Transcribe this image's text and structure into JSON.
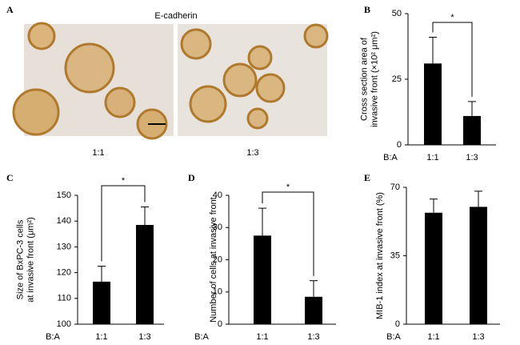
{
  "figure": {
    "panel_a": {
      "label": "A",
      "title": "E-cadherin",
      "captions": [
        "1:1",
        "1:3"
      ]
    }
  },
  "chart_data": [
    {
      "type": "bar",
      "panel_label": "B",
      "ylabel": [
        "Cross section area of",
        "invasive front (×10² μm²)"
      ],
      "x_prefix": "B:A",
      "categories": [
        "1:1",
        "1:3"
      ],
      "values": [
        31,
        11
      ],
      "errors": [
        10,
        5.5
      ],
      "ylim": [
        0,
        50
      ],
      "yticks": [
        0,
        25,
        50
      ],
      "significance": "*",
      "color": "#000000"
    },
    {
      "type": "bar",
      "panel_label": "C",
      "ylabel": [
        "Size of BxPC-3 cells",
        "at invasive front (μm²)"
      ],
      "x_prefix": "B:A",
      "categories": [
        "1:1",
        "1:3"
      ],
      "values": [
        116.5,
        138.5
      ],
      "errors": [
        6,
        7
      ],
      "ylim": [
        100,
        150
      ],
      "yticks": [
        100,
        110,
        120,
        130,
        140,
        150
      ],
      "significance": "*",
      "color": "#000000"
    },
    {
      "type": "bar",
      "panel_label": "D",
      "ylabel": [
        "Number of cells at invasive front"
      ],
      "x_prefix": "B:A",
      "categories": [
        "1:1",
        "1:3"
      ],
      "values": [
        27.5,
        8.5
      ],
      "errors": [
        8.5,
        5
      ],
      "ylim": [
        0,
        40
      ],
      "yticks": [
        0,
        10,
        20,
        30,
        40
      ],
      "significance": "*",
      "color": "#000000"
    },
    {
      "type": "bar",
      "panel_label": "E",
      "ylabel": [
        "MIB-1 index at invasive front (%)"
      ],
      "x_prefix": "B:A",
      "categories": [
        "1:1",
        "1:3"
      ],
      "values": [
        57,
        60
      ],
      "errors": [
        7,
        8
      ],
      "ylim": [
        0,
        70
      ],
      "yticks": [
        0,
        35,
        70
      ],
      "color": "#000000"
    }
  ]
}
